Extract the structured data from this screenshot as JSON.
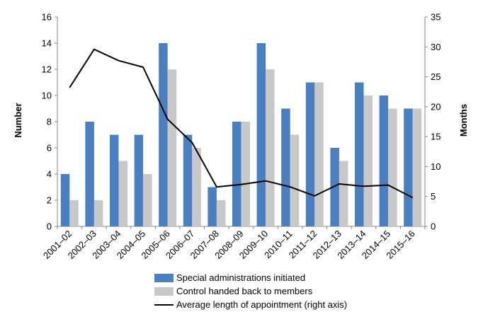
{
  "chart_data": {
    "type": "bar",
    "categories": [
      "2001–02",
      "2002–03",
      "2003–04",
      "2004–05",
      "2005–06",
      "2006–07",
      "2007–08",
      "2008–09",
      "2009–10",
      "2010–11",
      "2011–12",
      "2012–13",
      "2013–14",
      "2014–15",
      "2015–16"
    ],
    "series": [
      {
        "name": "Special administrations initiated",
        "type": "bar",
        "axis": "left",
        "color": "#4a7fc1",
        "values": [
          4,
          8,
          7,
          7,
          14,
          7,
          3,
          8,
          14,
          9,
          11,
          6,
          11,
          10,
          9
        ]
      },
      {
        "name": "Control handed back to members",
        "type": "bar",
        "axis": "left",
        "color": "#c8c8c8",
        "values": [
          2,
          2,
          5,
          4,
          12,
          6,
          2,
          8,
          12,
          7,
          11,
          5,
          10,
          9,
          9
        ]
      },
      {
        "name": "Average length of appointment (right axis)",
        "type": "line",
        "axis": "right",
        "color": "#000000",
        "values": [
          23.2,
          29.6,
          27.7,
          26.6,
          17.9,
          14.0,
          6.6,
          7.0,
          7.6,
          6.6,
          5.1,
          7.1,
          6.7,
          6.9,
          4.8
        ]
      }
    ],
    "ylabel": "Number",
    "y2label": "Months",
    "ylim": [
      0,
      16
    ],
    "yticks": [
      "0",
      "2",
      "4",
      "6",
      "8",
      "10",
      "12",
      "14",
      "16"
    ],
    "y2lim": [
      0,
      35
    ],
    "y2ticks": [
      "0",
      "5",
      "10",
      "15",
      "20",
      "25",
      "30",
      "35"
    ],
    "grid": false,
    "legend_position": "bottom"
  }
}
